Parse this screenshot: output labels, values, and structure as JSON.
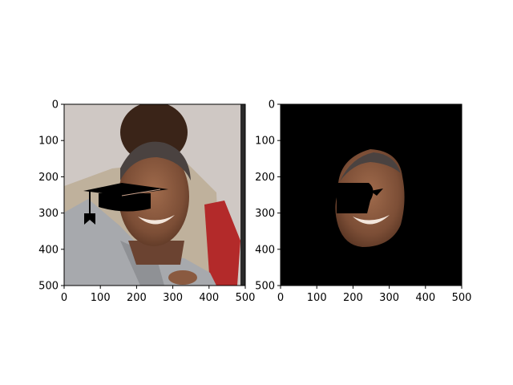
{
  "chart_data": [
    {
      "type": "image",
      "panel": "left",
      "content": "photo of a smiling man in a grey suit with a black graduation-cap overlay partially covering his face; another man in the background",
      "xlim": [
        0,
        500
      ],
      "ylim": [
        500,
        0
      ],
      "xticks": [
        0,
        100,
        200,
        300,
        400,
        500
      ],
      "yticks": [
        0,
        100,
        200,
        300,
        400,
        500
      ],
      "xtick_labels": [
        "0",
        "100",
        "200",
        "300",
        "400",
        "500"
      ],
      "ytick_labels": [
        "0",
        "100",
        "200",
        "300",
        "400",
        "500"
      ]
    },
    {
      "type": "image",
      "panel": "right",
      "content": "segmentation mask: only the face region of the man is shown on a black background, with the cap region removed",
      "xlim": [
        0,
        500
      ],
      "ylim": [
        500,
        0
      ],
      "xticks": [
        0,
        100,
        200,
        300,
        400,
        500
      ],
      "yticks": [
        0,
        100,
        200,
        300,
        400,
        500
      ],
      "xtick_labels": [
        "0",
        "100",
        "200",
        "300",
        "400",
        "500"
      ],
      "ytick_labels": [
        "0",
        "100",
        "200",
        "300",
        "400",
        "500"
      ]
    }
  ],
  "colors": {
    "background": "#ffffff",
    "wall": "#cfc8c4",
    "suit": "#a7a9ad",
    "jacket_bg": "#bfb19c",
    "red": "#b32a2a",
    "skin": "#8a5a40",
    "skin_dark": "#5c3826",
    "cap": "#000000",
    "mask_bg": "#000000"
  }
}
